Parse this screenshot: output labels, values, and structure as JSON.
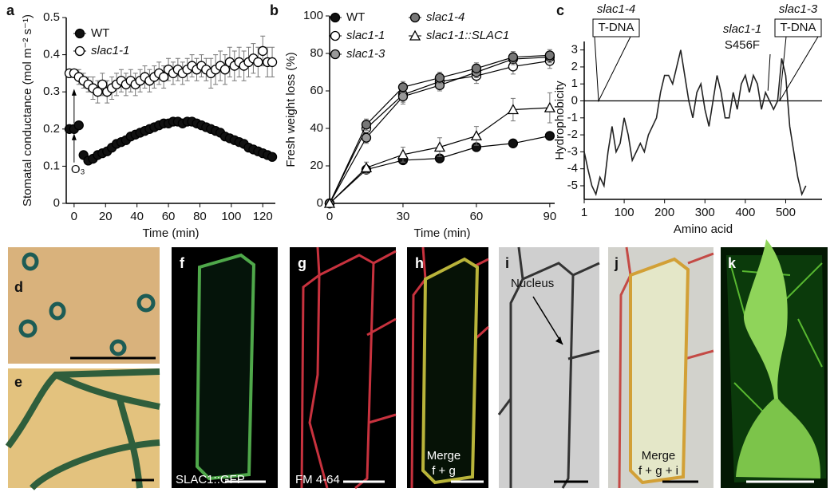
{
  "chart_data": [
    {
      "type": "line",
      "panel": "a",
      "xlabel": "Time (min)",
      "ylabel": "Stomatal conductance (mol m⁻² s⁻¹)",
      "xlim": [
        -5,
        128
      ],
      "ylim": [
        0,
        0.5
      ],
      "xticks": [
        0,
        20,
        40,
        60,
        80,
        100,
        120
      ],
      "yticks": [
        0,
        0.1,
        0.2,
        0.3,
        0.4,
        0.5
      ],
      "annotation": "O₃",
      "x": [
        -3,
        0,
        3,
        6,
        9,
        12,
        15,
        18,
        21,
        24,
        27,
        30,
        33,
        36,
        39,
        42,
        45,
        48,
        51,
        54,
        57,
        60,
        63,
        66,
        69,
        72,
        75,
        78,
        81,
        84,
        87,
        90,
        93,
        96,
        99,
        102,
        105,
        108,
        111,
        114,
        117,
        120,
        123,
        126
      ],
      "series": [
        {
          "name": "WT",
          "color": "#111111",
          "marker": "circle",
          "values": [
            0.2,
            0.2,
            0.21,
            0.13,
            0.115,
            0.12,
            0.13,
            0.135,
            0.14,
            0.15,
            0.16,
            0.165,
            0.17,
            0.18,
            0.185,
            0.19,
            0.195,
            0.2,
            0.205,
            0.21,
            0.215,
            0.215,
            0.22,
            0.22,
            0.215,
            0.22,
            0.22,
            0.215,
            0.21,
            0.205,
            0.2,
            0.195,
            0.19,
            0.18,
            0.175,
            0.17,
            0.165,
            0.16,
            0.15,
            0.145,
            0.14,
            0.135,
            0.13,
            0.125
          ],
          "errors": [
            0.005,
            0.005,
            0.005,
            0.005,
            0.005,
            0.005,
            0.005,
            0.005,
            0.005,
            0.005,
            0.005,
            0.006,
            0.006,
            0.006,
            0.007,
            0.007,
            0.007,
            0.008,
            0.008,
            0.008,
            0.008,
            0.008,
            0.008,
            0.008,
            0.008,
            0.008,
            0.008,
            0.008,
            0.008,
            0.008,
            0.007,
            0.007,
            0.007,
            0.007,
            0.006,
            0.006,
            0.006,
            0.006,
            0.005,
            0.005,
            0.005,
            0.005,
            0.005,
            0.005
          ]
        },
        {
          "name": "slac1-1",
          "color": "#ffffff",
          "marker": "circle",
          "values": [
            0.35,
            0.35,
            0.34,
            0.33,
            0.32,
            0.31,
            0.3,
            0.32,
            0.3,
            0.31,
            0.32,
            0.33,
            0.32,
            0.33,
            0.32,
            0.33,
            0.34,
            0.33,
            0.34,
            0.35,
            0.34,
            0.36,
            0.35,
            0.36,
            0.35,
            0.36,
            0.37,
            0.36,
            0.37,
            0.36,
            0.35,
            0.36,
            0.37,
            0.36,
            0.38,
            0.37,
            0.38,
            0.37,
            0.38,
            0.39,
            0.38,
            0.41,
            0.38,
            0.38
          ],
          "errors": [
            0.01,
            0.01,
            0.02,
            0.02,
            0.02,
            0.03,
            0.03,
            0.03,
            0.03,
            0.03,
            0.03,
            0.03,
            0.03,
            0.03,
            0.03,
            0.03,
            0.03,
            0.03,
            0.03,
            0.03,
            0.03,
            0.03,
            0.03,
            0.03,
            0.03,
            0.03,
            0.03,
            0.03,
            0.03,
            0.03,
            0.04,
            0.04,
            0.04,
            0.04,
            0.04,
            0.04,
            0.04,
            0.04,
            0.04,
            0.04,
            0.04,
            0.04,
            0.04,
            0.04
          ]
        }
      ]
    },
    {
      "type": "line",
      "panel": "b",
      "xlabel": "Time (min)",
      "ylabel": "Fresh weight loss (%)",
      "xlim": [
        0,
        92
      ],
      "ylim": [
        0,
        100
      ],
      "xticks": [
        0,
        30,
        60,
        90
      ],
      "yticks": [
        0,
        20,
        40,
        60,
        80,
        100
      ],
      "connect": true,
      "x": [
        0,
        15,
        30,
        45,
        60,
        75,
        90
      ],
      "series": [
        {
          "name": "WT",
          "color": "#111111",
          "marker": "circle",
          "values": [
            0,
            18,
            23,
            24,
            30,
            32,
            36
          ],
          "errors": [
            0,
            2,
            2,
            2,
            2,
            2,
            2
          ]
        },
        {
          "name": "slac1-1",
          "color": "#ffffff",
          "marker": "circle",
          "values": [
            0,
            40,
            58,
            65,
            68,
            73,
            76
          ],
          "errors": [
            0,
            3,
            4,
            4,
            4,
            4,
            4
          ]
        },
        {
          "name": "slac1-3",
          "color": "#999999",
          "marker": "circle",
          "values": [
            0,
            35,
            57,
            63,
            70,
            77,
            78
          ],
          "errors": [
            0,
            3,
            4,
            3,
            3,
            3,
            3
          ]
        },
        {
          "name": "slac1-4",
          "color": "#777777",
          "marker": "circle",
          "values": [
            0,
            42,
            62,
            67,
            72,
            78,
            79
          ],
          "errors": [
            0,
            3,
            3,
            3,
            3,
            3,
            3
          ]
        },
        {
          "name": "slac1-1::SLAC1",
          "color": "#ffffff",
          "marker": "triangle",
          "values": [
            0,
            19,
            26,
            30,
            36,
            50,
            51
          ],
          "errors": [
            0,
            3,
            4,
            5,
            5,
            6,
            8
          ]
        }
      ]
    },
    {
      "type": "line",
      "panel": "c",
      "xlabel": "Amino acid",
      "ylabel": "Hydrophobicity",
      "xlim": [
        1,
        590
      ],
      "ylim": [
        -5.8,
        3.5
      ],
      "xticks": [
        1,
        100,
        200,
        300,
        400,
        500
      ],
      "yticks": [
        -5,
        -4,
        -3,
        -2,
        -1,
        0,
        1,
        2,
        3
      ],
      "zero_line": true,
      "annotations": [
        "slac1-4",
        "T-DNA",
        "slac1-1",
        "S456F",
        "slac1-3",
        "T-DNA"
      ],
      "x": [
        1,
        10,
        20,
        30,
        40,
        50,
        60,
        70,
        80,
        90,
        100,
        110,
        120,
        130,
        140,
        150,
        160,
        170,
        180,
        190,
        200,
        210,
        220,
        230,
        240,
        250,
        260,
        270,
        280,
        290,
        300,
        310,
        320,
        330,
        340,
        350,
        360,
        370,
        380,
        390,
        400,
        410,
        420,
        430,
        440,
        450,
        460,
        470,
        480,
        490,
        500,
        510,
        520,
        530,
        540,
        550
      ],
      "series": [
        {
          "name": "Hydrophobicity",
          "color": "#222222",
          "values": [
            -3,
            -4,
            -5,
            -5.5,
            -4.5,
            -5,
            -3,
            -1.5,
            -3,
            -2.5,
            -1,
            -2,
            -3.5,
            -3,
            -2.5,
            -3,
            -2,
            -1.5,
            -1,
            0.5,
            1.5,
            1.5,
            1,
            2,
            3,
            1.5,
            0,
            -1,
            0.5,
            1,
            -0.5,
            -1.5,
            0,
            1.5,
            0.5,
            -1,
            -1,
            0.5,
            -0.5,
            1,
            1.5,
            0.5,
            1.5,
            1,
            -0.5,
            0.5,
            0,
            -0.5,
            0,
            2.5,
            1.5,
            -1.5,
            -3,
            -4.5,
            -5.5,
            -5
          ]
        }
      ]
    }
  ],
  "image_panels": [
    {
      "label": "d"
    },
    {
      "label": "e"
    },
    {
      "label": "f",
      "caption": [
        "SLAC1::GFP"
      ]
    },
    {
      "label": "g",
      "caption": [
        "FM 4-64"
      ]
    },
    {
      "label": "h",
      "caption": [
        "Merge",
        "f + g"
      ]
    },
    {
      "label": "i",
      "caption": [
        "Nucleus"
      ]
    },
    {
      "label": "j",
      "caption": [
        "Merge",
        "f + g + i"
      ]
    },
    {
      "label": "k"
    }
  ]
}
